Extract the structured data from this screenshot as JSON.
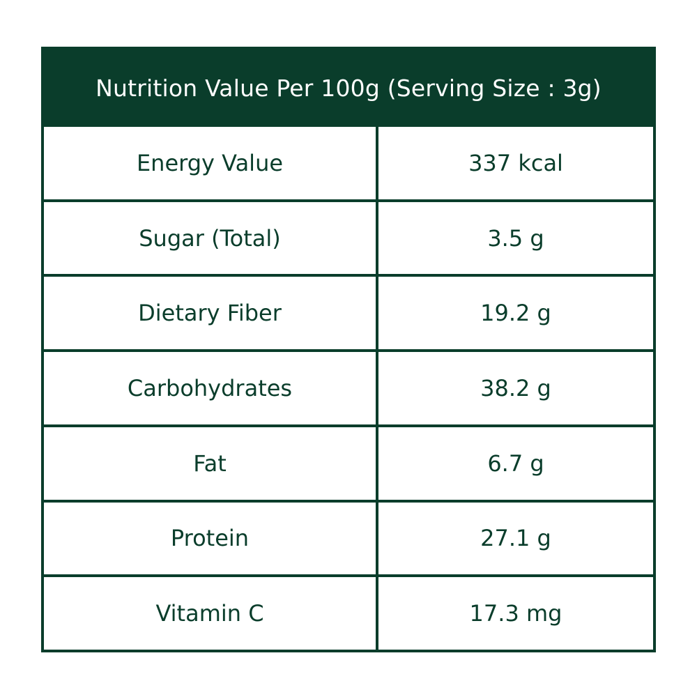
{
  "colors": {
    "primary": "#0a3d2b",
    "background": "#ffffff",
    "header_text": "#ffffff"
  },
  "table": {
    "title": "Nutrition Value Per 100g (Serving Size : 3g)",
    "rows": [
      {
        "name": "Energy Value",
        "value": "337 kcal"
      },
      {
        "name": "Sugar (Total)",
        "value": "3.5 g"
      },
      {
        "name": "Dietary Fiber",
        "value": "19.2 g"
      },
      {
        "name": "Carbohydrates",
        "value": "38.2 g"
      },
      {
        "name": "Fat",
        "value": "6.7 g"
      },
      {
        "name": "Protein",
        "value": "27.1 g"
      },
      {
        "name": "Vitamin C",
        "value": "17.3 mg"
      }
    ]
  }
}
